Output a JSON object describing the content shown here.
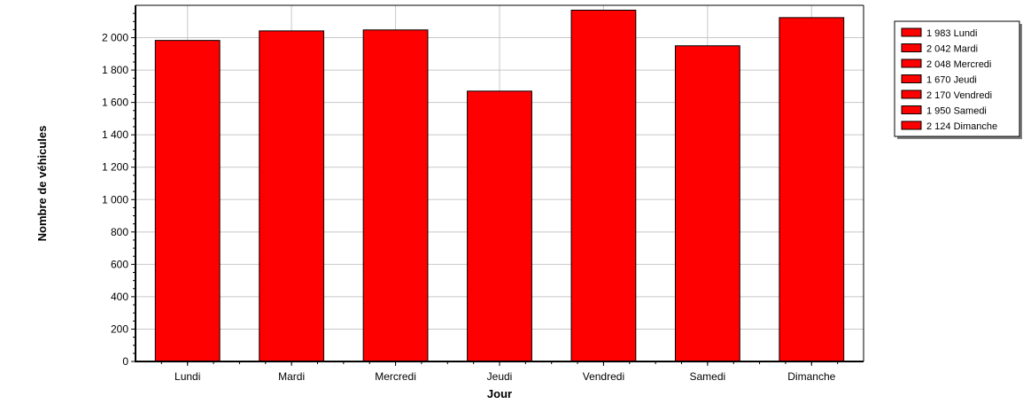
{
  "chart_data": {
    "type": "bar",
    "categories": [
      "Lundi",
      "Mardi",
      "Mercredi",
      "Jeudi",
      "Vendredi",
      "Samedi",
      "Dimanche"
    ],
    "values": [
      1983,
      2042,
      2048,
      1670,
      2170,
      1950,
      2124
    ],
    "title": "",
    "xlabel": "Jour",
    "ylabel": "Nombre de véhicules",
    "ylim": [
      0,
      2200
    ],
    "yticks": [
      0,
      200,
      400,
      600,
      800,
      1000,
      1200,
      1400,
      1600,
      1800,
      2000
    ],
    "ytick_labels": [
      "0",
      "200",
      "400",
      "600",
      "800",
      "1 000",
      "1 200",
      "1 400",
      "1 600",
      "1 800",
      "2 000"
    ],
    "legend_labels": [
      "1 983 Lundi",
      "2 042 Mardi",
      "2 048 Mercredi",
      "1 670 Jeudi",
      "2 170 Vendredi",
      "1 950 Samedi",
      "2 124 Dimanche"
    ],
    "grid": true,
    "legend_position": "top-right",
    "bar_color": "#ff0000",
    "grid_color": "#c8c8c8"
  }
}
